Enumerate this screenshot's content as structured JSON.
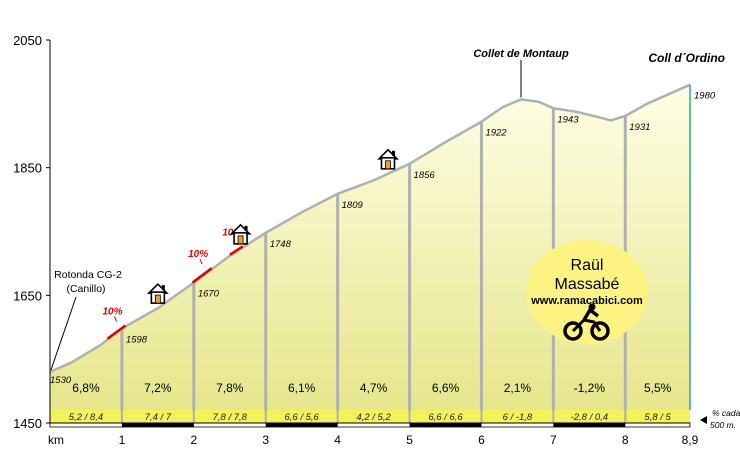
{
  "chart_data": {
    "type": "area",
    "title": "Coll d´Ordino",
    "xlabel": "km",
    "ylabel": "",
    "xlim": [
      0,
      8.9
    ],
    "ylim": [
      1450,
      2050
    ],
    "y_ticks": [
      "2050",
      "1850",
      "1650",
      "1450"
    ],
    "y_tick_values": [
      2050,
      1850,
      1650,
      1450
    ],
    "x_ticks": [
      "1",
      "2",
      "3",
      "4",
      "5",
      "6",
      "7",
      "8",
      "8,9"
    ],
    "x_tick_values": [
      1,
      2,
      3,
      4,
      5,
      6,
      7,
      8,
      8.9
    ],
    "grid": false,
    "profile": [
      {
        "km": 0,
        "alt": 1530
      },
      {
        "km": 0.3,
        "alt": 1545
      },
      {
        "km": 0.7,
        "alt": 1572
      },
      {
        "km": 1,
        "alt": 1598
      },
      {
        "km": 1.5,
        "alt": 1630
      },
      {
        "km": 2,
        "alt": 1670
      },
      {
        "km": 2.5,
        "alt": 1712
      },
      {
        "km": 3,
        "alt": 1748
      },
      {
        "km": 3.5,
        "alt": 1780
      },
      {
        "km": 4,
        "alt": 1809
      },
      {
        "km": 4.5,
        "alt": 1830
      },
      {
        "km": 5,
        "alt": 1856
      },
      {
        "km": 5.5,
        "alt": 1890
      },
      {
        "km": 6,
        "alt": 1922
      },
      {
        "km": 6.3,
        "alt": 1945
      },
      {
        "km": 6.55,
        "alt": 1957
      },
      {
        "km": 6.8,
        "alt": 1953
      },
      {
        "km": 7,
        "alt": 1943
      },
      {
        "km": 7.3,
        "alt": 1938
      },
      {
        "km": 7.6,
        "alt": 1930
      },
      {
        "km": 7.8,
        "alt": 1924
      },
      {
        "km": 8,
        "alt": 1931
      },
      {
        "km": 8.3,
        "alt": 1950
      },
      {
        "km": 8.6,
        "alt": 1965
      },
      {
        "km": 8.9,
        "alt": 1980
      }
    ],
    "point_labels": [
      {
        "km": 0,
        "alt": 1530,
        "label": "1530"
      },
      {
        "km": 1,
        "alt": 1598,
        "label": "1598"
      },
      {
        "km": 2,
        "alt": 1670,
        "label": "1670"
      },
      {
        "km": 3,
        "alt": 1748,
        "label": "1748"
      },
      {
        "km": 4,
        "alt": 1809,
        "label": "1809"
      },
      {
        "km": 5,
        "alt": 1856,
        "label": "1856"
      },
      {
        "km": 6,
        "alt": 1922,
        "label": "1922"
      },
      {
        "km": 7,
        "alt": 1943,
        "label": "1943"
      },
      {
        "km": 8,
        "alt": 1931,
        "label": "1931"
      },
      {
        "km": 8.9,
        "alt": 1980,
        "label": "1980"
      }
    ],
    "segment_gradients": [
      "6,8%",
      "7,2%",
      "7,8%",
      "6,1%",
      "4,7%",
      "6,6%",
      "2,1%",
      "-1,2%",
      "5,5%"
    ],
    "half_km_gradients": [
      "5,2  /  8,4",
      "7,4  /  7",
      "7,8  /  7,8",
      "6,6  /  5,6",
      "4,2  /  5,2",
      "6,6  /  6,6",
      "6  /  -1,8",
      "-2,8  /  0,4",
      "5,8  /  5"
    ],
    "half_km_note_line1": "% cada",
    "half_km_note_line2": "500 m.",
    "steep_ramps": [
      {
        "km_from": 0.8,
        "km_to": 1.05,
        "label": "10%"
      },
      {
        "km_from": 1.98,
        "km_to": 2.25,
        "label": "10%"
      },
      {
        "km_from": 2.5,
        "km_to": 2.68,
        "label": "10%"
      }
    ],
    "houses_km": [
      1.5,
      2.65,
      4.7
    ],
    "annotations": [
      {
        "label": "Collet de Montaup",
        "km": 6.55,
        "alt": 1957
      },
      {
        "label": "Coll  d´Ordino",
        "km": 8.9,
        "alt": 1980
      }
    ],
    "start_label_line1": "Rotonda CG-2",
    "start_label_line2": "(Canillo)",
    "badge": {
      "name": "Raül Massabé",
      "url": "www.ramacabici.com"
    },
    "colors": {
      "fill_top": "#fefee6",
      "fill_bottom": "#e6e68c",
      "bar_row": "#f2f25a",
      "profile_line": "#b0b0b0",
      "ramp": "#e00000",
      "badge": "#fdf383"
    }
  }
}
